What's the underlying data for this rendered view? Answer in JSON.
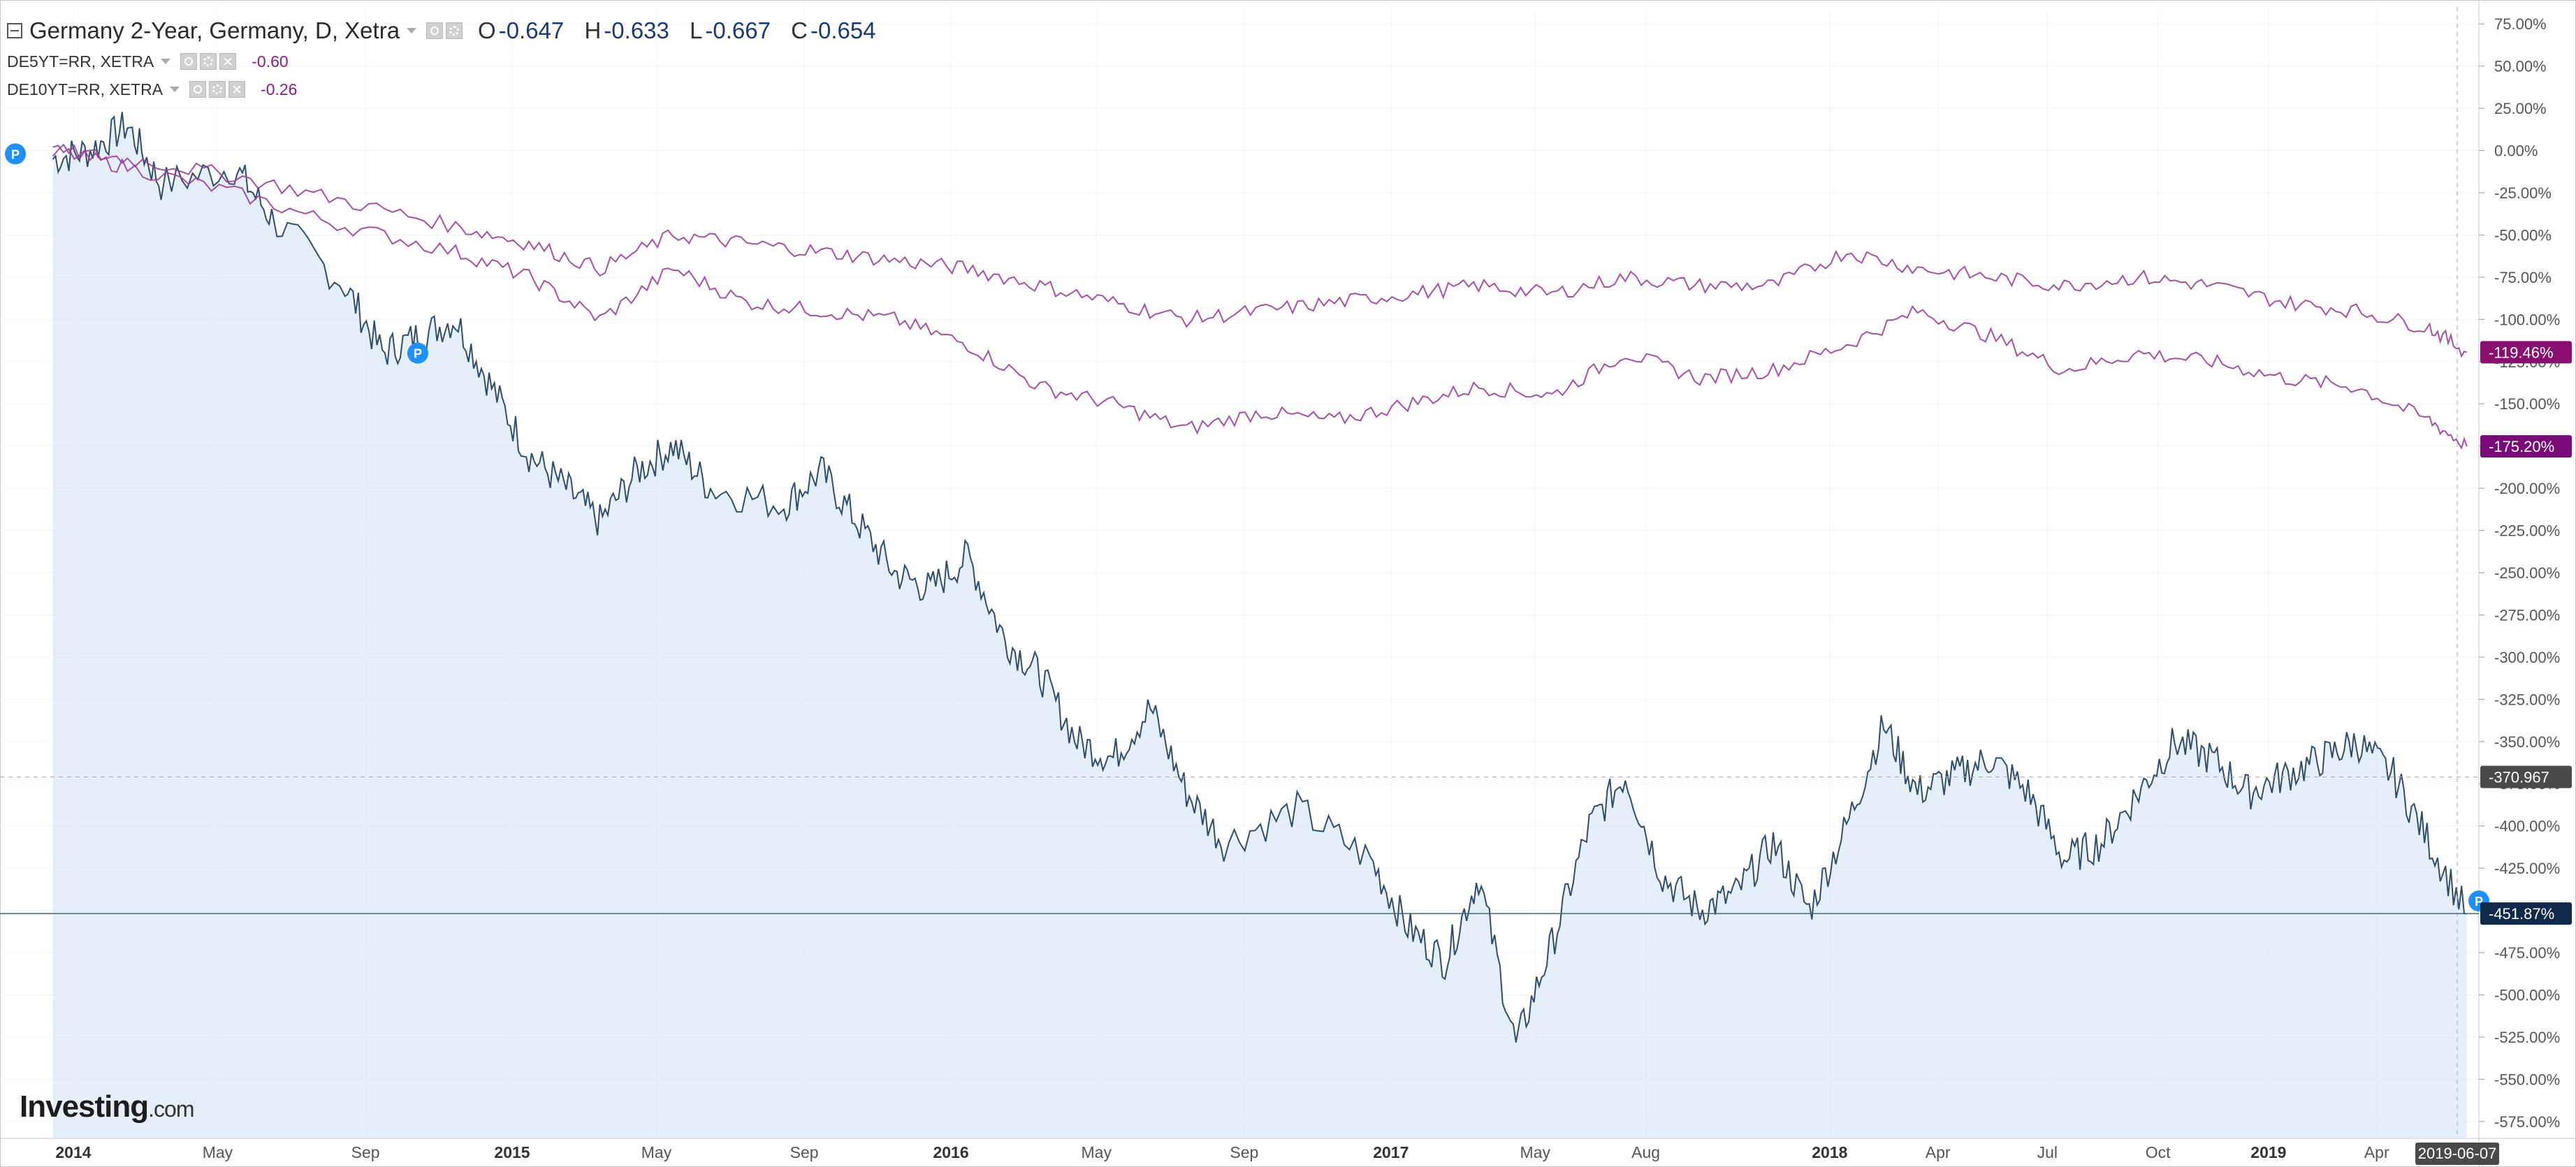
{
  "legend": {
    "main": {
      "title": "Germany 2-Year, Germany, D, Xetra",
      "o_label": "O",
      "o": "-0.647",
      "h_label": "H",
      "h": "-0.633",
      "l_label": "L",
      "l": "-0.667",
      "c_label": "C",
      "c": "-0.654"
    },
    "sub1": {
      "name": "DE5YT=RR, XETRA",
      "value": "-0.60"
    },
    "sub2": {
      "name": "DE10YT=RR, XETRA",
      "value": "-0.26"
    }
  },
  "logo": {
    "brand": "Investing",
    "suffix": ".com"
  },
  "colors": {
    "main_line": "#2f4d6b",
    "main_fill": "#d3e4f5",
    "compare_line": "#9b3d9b",
    "tag_purple": "#8b0f6e",
    "tag_magenta": "#7a0a7a",
    "tag_navy": "#0f2a4a",
    "tag_gray": "#4a4a4a",
    "marker_blue": "#1e90ff"
  },
  "chart_data": {
    "type": "line",
    "title": "Germany 2-Year, Germany, D, Xetra",
    "y_unit": "percent change",
    "ylim": [
      -585,
      85
    ],
    "y_ticks": [
      "75.00%",
      "50.00%",
      "25.00%",
      "0.00%",
      "-25.00%",
      "-50.00%",
      "-75.00%",
      "-100.00%",
      "-125.00%",
      "-150.00%",
      "-175.00%",
      "-200.00%",
      "-225.00%",
      "-250.00%",
      "-275.00%",
      "-300.00%",
      "-325.00%",
      "-350.00%",
      "-375.00%",
      "-400.00%",
      "-425.00%",
      "-450.00%",
      "-475.00%",
      "-500.00%",
      "-525.00%",
      "-550.00%",
      "-575.00%"
    ],
    "x_ticks": [
      "2014",
      "May",
      "Sep",
      "2015",
      "May",
      "Sep",
      "2016",
      "May",
      "Sep",
      "2017",
      "May",
      "Aug",
      "2018",
      "Apr",
      "Jul",
      "Oct",
      "2019",
      "Apr"
    ],
    "x_cursor_label": "2019-06-07",
    "series": [
      {
        "name": "Germany 2-Year",
        "x": [
          "2013-12",
          "2014-01",
          "2014-02",
          "2014-03",
          "2014-05",
          "2014-06",
          "2014-08",
          "2014-09",
          "2014-10",
          "2014-11",
          "2014-12",
          "2015-01",
          "2015-02",
          "2015-03",
          "2015-04",
          "2015-05",
          "2015-06",
          "2015-08",
          "2015-09",
          "2015-10",
          "2015-11",
          "2015-12",
          "2016-01",
          "2016-02",
          "2016-03",
          "2016-04",
          "2016-05",
          "2016-06",
          "2016-07",
          "2016-08",
          "2016-10",
          "2016-12",
          "2017-01",
          "2017-02",
          "2017-03",
          "2017-04",
          "2017-05",
          "2017-06",
          "2017-07",
          "2017-08",
          "2017-09",
          "2017-10",
          "2017-11",
          "2017-12",
          "2018-01",
          "2018-02",
          "2018-03",
          "2018-04",
          "2018-05",
          "2018-06",
          "2018-07",
          "2018-08",
          "2018-09",
          "2018-10",
          "2018-11",
          "2018-12",
          "2019-01",
          "2019-02",
          "2019-03",
          "2019-04",
          "2019-05",
          "2019-06"
        ],
        "values": [
          -5,
          0,
          15,
          -20,
          -10,
          -40,
          -80,
          -120,
          -110,
          -100,
          -140,
          -180,
          -200,
          -220,
          -190,
          -175,
          -200,
          -210,
          -190,
          -220,
          -250,
          -260,
          -240,
          -290,
          -310,
          -350,
          -360,
          -330,
          -380,
          -410,
          -390,
          -420,
          -460,
          -480,
          -430,
          -530,
          -470,
          -400,
          -370,
          -430,
          -450,
          -440,
          -410,
          -450,
          -400,
          -340,
          -380,
          -370,
          -360,
          -380,
          -420,
          -410,
          -380,
          -350,
          -360,
          -380,
          -370,
          -360,
          -350,
          -370,
          -410,
          -452
        ]
      },
      {
        "name": "DE5YT=RR",
        "x": [
          "2013-12",
          "2014-02",
          "2014-05",
          "2014-08",
          "2014-11",
          "2015-01",
          "2015-03",
          "2015-05",
          "2015-07",
          "2015-09",
          "2015-11",
          "2016-01",
          "2016-03",
          "2016-05",
          "2016-07",
          "2016-09",
          "2016-11",
          "2017-01",
          "2017-03",
          "2017-05",
          "2017-07",
          "2017-09",
          "2017-11",
          "2018-01",
          "2018-03",
          "2018-05",
          "2018-07",
          "2018-09",
          "2018-11",
          "2019-01",
          "2019-03",
          "2019-05",
          "2019-06"
        ],
        "values": [
          0,
          -10,
          -25,
          -45,
          -60,
          -75,
          -100,
          -70,
          -90,
          -95,
          -100,
          -115,
          -140,
          -150,
          -165,
          -155,
          -160,
          -150,
          -140,
          -145,
          -120,
          -135,
          -130,
          -115,
          -95,
          -110,
          -130,
          -120,
          -125,
          -135,
          -140,
          -160,
          -175.2
        ]
      },
      {
        "name": "DE10YT=RR",
        "x": [
          "2013-12",
          "2014-02",
          "2014-05",
          "2014-08",
          "2014-11",
          "2015-01",
          "2015-03",
          "2015-05",
          "2015-07",
          "2015-09",
          "2015-11",
          "2016-01",
          "2016-03",
          "2016-05",
          "2016-07",
          "2016-09",
          "2016-11",
          "2017-01",
          "2017-03",
          "2017-05",
          "2017-07",
          "2017-09",
          "2017-11",
          "2018-01",
          "2018-03",
          "2018-05",
          "2018-07",
          "2018-09",
          "2018-11",
          "2019-01",
          "2019-03",
          "2019-05",
          "2019-06"
        ],
        "values": [
          0,
          -5,
          -15,
          -30,
          -45,
          -55,
          -70,
          -50,
          -55,
          -60,
          -65,
          -70,
          -80,
          -90,
          -100,
          -95,
          -90,
          -85,
          -80,
          -85,
          -75,
          -80,
          -80,
          -60,
          -70,
          -75,
          -80,
          -75,
          -80,
          -90,
          -95,
          -105,
          -119.46
        ]
      }
    ],
    "price_tags": {
      "de10": "-119.46%",
      "de5": "-175.20%",
      "crosshair": "-370.967",
      "last": "-451.87%"
    },
    "crosshair_y": -370.967,
    "last_value": -451.87,
    "grid": true,
    "legend": "top-left"
  }
}
